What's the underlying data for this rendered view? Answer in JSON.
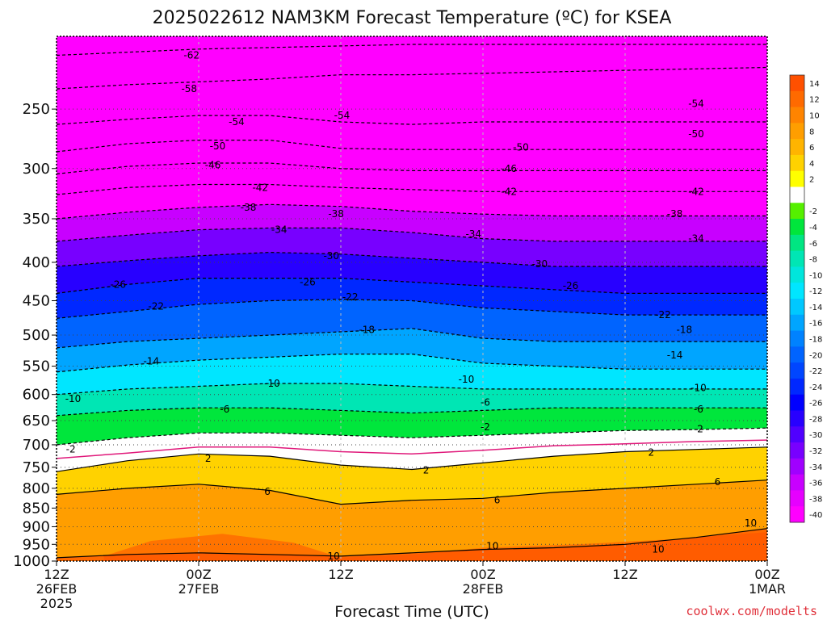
{
  "title": "2025022612 NAM3KM Forecast Temperature (ºC) for KSEA",
  "credit": "coolwx.com/modelts",
  "chart_data": {
    "type": "heatmap",
    "title": "2025022612 NAM3KM Forecast Temperature (ºC) for KSEA",
    "xlabel": "Forecast Time (UTC)",
    "ylabel": "",
    "y_scale": "log",
    "y_inverted": true,
    "ylim": [
      1000,
      200
    ],
    "xlim_hours": [
      0,
      60
    ],
    "x_ticks": [
      {
        "hour": 0,
        "lines": [
          "12Z",
          "26FEB",
          "2025"
        ]
      },
      {
        "hour": 12,
        "lines": [
          "00Z",
          "27FEB"
        ]
      },
      {
        "hour": 24,
        "lines": [
          "12Z"
        ]
      },
      {
        "hour": 36,
        "lines": [
          "00Z",
          "28FEB"
        ]
      },
      {
        "hour": 48,
        "lines": [
          "12Z"
        ]
      },
      {
        "hour": 60,
        "lines": [
          "00Z",
          "1MAR"
        ]
      }
    ],
    "y_ticks": [
      250,
      300,
      350,
      400,
      450,
      500,
      550,
      600,
      650,
      700,
      750,
      800,
      850,
      900,
      950,
      1000
    ],
    "grid": true,
    "colorbar": {
      "placement": "right",
      "levels": [
        {
          "label": "14",
          "color": "#ff5000"
        },
        {
          "label": "12",
          "color": "#ff6a00"
        },
        {
          "label": "10",
          "color": "#ff8400"
        },
        {
          "label": "8",
          "color": "#ff9e00"
        },
        {
          "label": "6",
          "color": "#ffb400"
        },
        {
          "label": "4",
          "color": "#ffd200"
        },
        {
          "label": "2",
          "color": "#ffff00"
        },
        {
          "label": "",
          "color": "#ffffff"
        },
        {
          "label": "-2",
          "color": "#55f000"
        },
        {
          "label": "-4",
          "color": "#00e63c"
        },
        {
          "label": "-6",
          "color": "#00e682"
        },
        {
          "label": "-8",
          "color": "#00e6b4"
        },
        {
          "label": "-10",
          "color": "#00e6dc"
        },
        {
          "label": "-12",
          "color": "#00e6ff"
        },
        {
          "label": "-14",
          "color": "#00c8ff"
        },
        {
          "label": "-16",
          "color": "#00a5ff"
        },
        {
          "label": "-18",
          "color": "#0082ff"
        },
        {
          "label": "-20",
          "color": "#0064ff"
        },
        {
          "label": "-22",
          "color": "#0046ff"
        },
        {
          "label": "-24",
          "color": "#0028ff"
        },
        {
          "label": "-26",
          "color": "#0000ff"
        },
        {
          "label": "-28",
          "color": "#2800ff"
        },
        {
          "label": "-30",
          "color": "#5000ff"
        },
        {
          "label": "-32",
          "color": "#7800ff"
        },
        {
          "label": "-34",
          "color": "#a000ff"
        },
        {
          "label": "-36",
          "color": "#c800ff"
        },
        {
          "label": "-38",
          "color": "#e600ff"
        },
        {
          "label": "-40",
          "color": "#ff00ff"
        }
      ]
    },
    "isotherm_pressure_by_hour": {
      "hours": [
        0,
        6,
        12,
        18,
        24,
        30,
        36,
        42,
        48,
        54,
        60
      ],
      "contours": [
        {
          "temp": 10,
          "pressure": [
            990,
            980,
            975,
            980,
            985,
            975,
            965,
            960,
            950,
            930,
            905
          ]
        },
        {
          "temp": 6,
          "pressure": [
            815,
            800,
            790,
            805,
            840,
            830,
            825,
            810,
            800,
            790,
            780
          ]
        },
        {
          "temp": 2,
          "pressure": [
            760,
            735,
            720,
            725,
            745,
            755,
            740,
            725,
            715,
            710,
            705
          ]
        },
        {
          "temp": -2,
          "pressure": [
            700,
            685,
            675,
            675,
            680,
            685,
            680,
            675,
            670,
            668,
            665
          ]
        },
        {
          "temp": -6,
          "pressure": [
            640,
            630,
            625,
            625,
            630,
            635,
            630,
            625,
            625,
            625,
            625
          ]
        },
        {
          "temp": -10,
          "pressure": [
            600,
            590,
            585,
            580,
            580,
            585,
            590,
            590,
            590,
            590,
            590
          ]
        },
        {
          "temp": -14,
          "pressure": [
            560,
            548,
            540,
            535,
            530,
            530,
            545,
            550,
            555,
            555,
            555
          ]
        },
        {
          "temp": -18,
          "pressure": [
            520,
            510,
            505,
            500,
            495,
            490,
            505,
            510,
            510,
            510,
            510
          ]
        },
        {
          "temp": -22,
          "pressure": [
            475,
            465,
            455,
            450,
            448,
            450,
            460,
            465,
            470,
            470,
            470
          ]
        },
        {
          "temp": -26,
          "pressure": [
            440,
            428,
            420,
            420,
            420,
            425,
            430,
            435,
            440,
            440,
            440
          ]
        },
        {
          "temp": -30,
          "pressure": [
            405,
            398,
            392,
            388,
            390,
            395,
            400,
            405,
            405,
            405,
            405
          ]
        },
        {
          "temp": -34,
          "pressure": [
            375,
            368,
            362,
            360,
            360,
            365,
            372,
            375,
            375,
            375,
            375
          ]
        },
        {
          "temp": -38,
          "pressure": [
            350,
            343,
            338,
            335,
            337,
            342,
            345,
            347,
            347,
            347,
            347
          ]
        },
        {
          "temp": -42,
          "pressure": [
            325,
            318,
            315,
            315,
            318,
            320,
            322,
            322,
            322,
            322,
            322
          ]
        },
        {
          "temp": -46,
          "pressure": [
            305,
            298,
            295,
            295,
            300,
            302,
            302,
            302,
            302,
            302,
            302
          ]
        },
        {
          "temp": -50,
          "pressure": [
            285,
            278,
            275,
            275,
            282,
            283,
            283,
            283,
            283,
            283,
            283
          ]
        },
        {
          "temp": -54,
          "pressure": [
            262,
            258,
            255,
            255,
            260,
            262,
            260,
            260,
            260,
            260,
            260
          ]
        },
        {
          "temp": -58,
          "pressure": [
            235,
            232,
            230,
            228,
            225,
            225,
            224,
            223,
            222,
            221,
            220
          ]
        },
        {
          "temp": -62,
          "pressure": [
            212,
            210,
            208,
            207,
            206,
            205,
            205,
            205,
            205,
            205,
            205
          ]
        }
      ]
    },
    "freezing_line_pressure": [
      730,
      718,
      705,
      705,
      715,
      720,
      712,
      702,
      698,
      693,
      690
    ],
    "contour_labels": [
      {
        "text": "-62",
        "hour": 11.4,
        "pressure": 212
      },
      {
        "text": "-58",
        "hour": 11.2,
        "pressure": 235
      },
      {
        "text": "-54",
        "hour": 15.2,
        "pressure": 260
      },
      {
        "text": "-54",
        "hour": 24.1,
        "pressure": 255
      },
      {
        "text": "-54",
        "hour": 54.0,
        "pressure": 246
      },
      {
        "text": "-50",
        "hour": 13.6,
        "pressure": 280
      },
      {
        "text": "-50",
        "hour": 39.2,
        "pressure": 281
      },
      {
        "text": "-50",
        "hour": 54.0,
        "pressure": 270
      },
      {
        "text": "-46",
        "hour": 13.2,
        "pressure": 297
      },
      {
        "text": "-46",
        "hour": 38.2,
        "pressure": 300
      },
      {
        "text": "-42",
        "hour": 17.2,
        "pressure": 318
      },
      {
        "text": "-42",
        "hour": 38.2,
        "pressure": 322
      },
      {
        "text": "-42",
        "hour": 54.0,
        "pressure": 322
      },
      {
        "text": "-38",
        "hour": 16.2,
        "pressure": 338
      },
      {
        "text": "-38",
        "hour": 23.6,
        "pressure": 345
      },
      {
        "text": "-38",
        "hour": 52.2,
        "pressure": 345
      },
      {
        "text": "-34",
        "hour": 18.8,
        "pressure": 362
      },
      {
        "text": "-34",
        "hour": 35.2,
        "pressure": 367
      },
      {
        "text": "-34",
        "hour": 54.0,
        "pressure": 372
      },
      {
        "text": "-30",
        "hour": 23.2,
        "pressure": 392
      },
      {
        "text": "-30",
        "hour": 40.8,
        "pressure": 402
      },
      {
        "text": "-26",
        "hour": 5.2,
        "pressure": 428
      },
      {
        "text": "-26",
        "hour": 21.2,
        "pressure": 425
      },
      {
        "text": "-26",
        "hour": 43.4,
        "pressure": 430
      },
      {
        "text": "-22",
        "hour": 8.4,
        "pressure": 458
      },
      {
        "text": "-22",
        "hour": 24.8,
        "pressure": 445
      },
      {
        "text": "-22",
        "hour": 51.2,
        "pressure": 470
      },
      {
        "text": "-18",
        "hour": 26.2,
        "pressure": 492
      },
      {
        "text": "-18",
        "hour": 53.0,
        "pressure": 492
      },
      {
        "text": "-14",
        "hour": 8.0,
        "pressure": 542
      },
      {
        "text": "-14",
        "hour": 52.2,
        "pressure": 532
      },
      {
        "text": "-10",
        "hour": 1.4,
        "pressure": 608
      },
      {
        "text": "-10",
        "hour": 18.2,
        "pressure": 580
      },
      {
        "text": "-10",
        "hour": 34.6,
        "pressure": 573
      },
      {
        "text": "-10",
        "hour": 54.2,
        "pressure": 588
      },
      {
        "text": "-6",
        "hour": 14.2,
        "pressure": 628
      },
      {
        "text": "-6",
        "hour": 36.2,
        "pressure": 615
      },
      {
        "text": "-6",
        "hour": 54.2,
        "pressure": 628
      },
      {
        "text": "-2",
        "hour": 1.2,
        "pressure": 710
      },
      {
        "text": "-2",
        "hour": 36.2,
        "pressure": 663
      },
      {
        "text": "-2",
        "hour": 54.2,
        "pressure": 667
      },
      {
        "text": "2",
        "hour": 12.8,
        "pressure": 730
      },
      {
        "text": "2",
        "hour": 31.2,
        "pressure": 757
      },
      {
        "text": "2",
        "hour": 50.2,
        "pressure": 717
      },
      {
        "text": "6",
        "hour": 17.8,
        "pressure": 808
      },
      {
        "text": "6",
        "hour": 37.2,
        "pressure": 830
      },
      {
        "text": "6",
        "hour": 55.8,
        "pressure": 785
      },
      {
        "text": "10",
        "hour": 23.4,
        "pressure": 985
      },
      {
        "text": "10",
        "hour": 36.8,
        "pressure": 955
      },
      {
        "text": "10",
        "hour": 50.8,
        "pressure": 965
      },
      {
        "text": "10",
        "hour": 58.6,
        "pressure": 890
      }
    ],
    "terrain_pressure_top": 1010
  }
}
